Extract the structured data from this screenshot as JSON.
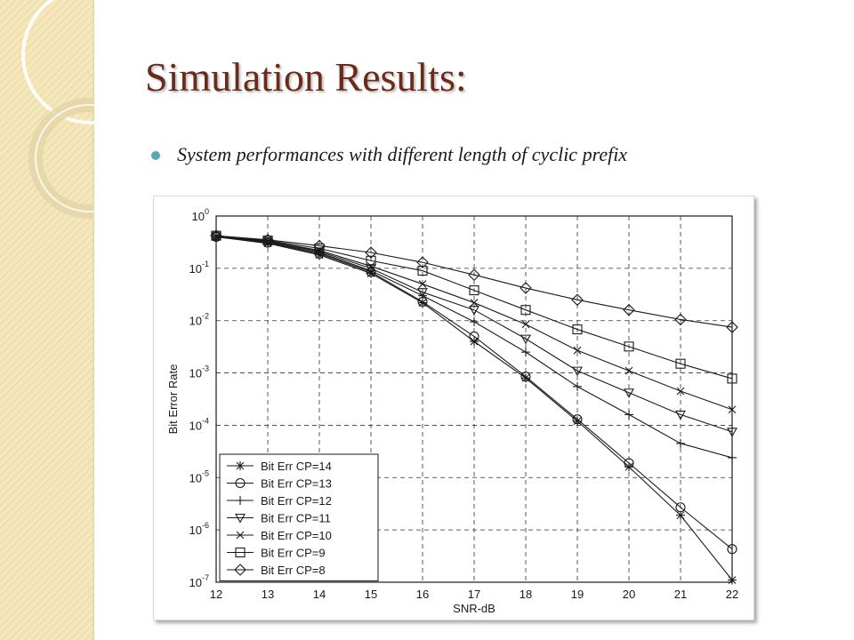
{
  "slide": {
    "title": "Simulation Results:",
    "bullet": "System performances with different length of cyclic prefix",
    "colors": {
      "side_panel": "#f3e4b4",
      "title": "#6b2a1a",
      "bullet": "#5aa7bd",
      "line": "#1a1a1a"
    }
  },
  "chart_data": {
    "type": "line",
    "xlabel": "SNR-dB",
    "ylabel": "Bit Error Rate",
    "xlim": [
      12,
      22
    ],
    "ylim": [
      1e-07,
      1
    ],
    "yscale": "log",
    "grid": true,
    "legend": "bottom-left",
    "x_ticks": [
      "12",
      "13",
      "14",
      "15",
      "16",
      "17",
      "18",
      "19",
      "20",
      "21",
      "22"
    ],
    "y_ticks": [
      {
        "base": "10",
        "exp": "0"
      },
      {
        "base": "10",
        "exp": "-1"
      },
      {
        "base": "10",
        "exp": "-2"
      },
      {
        "base": "10",
        "exp": "-3"
      },
      {
        "base": "10",
        "exp": "-4"
      },
      {
        "base": "10",
        "exp": "-5"
      },
      {
        "base": "10",
        "exp": "-6"
      },
      {
        "base": "10",
        "exp": "-7"
      }
    ],
    "x": [
      12,
      13,
      14,
      15,
      16,
      17,
      18,
      19,
      20,
      21,
      22
    ],
    "series": [
      {
        "name": "Bit Err CP=14",
        "marker": "star",
        "values": [
          0.4,
          0.3,
          0.18,
          0.08,
          0.022,
          0.004,
          0.0008,
          0.00012,
          1.6e-05,
          1.9e-06,
          1.1e-07
        ]
      },
      {
        "name": "Bit Err CP=13",
        "marker": "circle",
        "values": [
          0.4,
          0.31,
          0.19,
          0.085,
          0.023,
          0.005,
          0.00085,
          0.00013,
          1.9e-05,
          2.7e-06,
          4.3e-07
        ]
      },
      {
        "name": "Bit Err CP=12",
        "marker": "plus",
        "values": [
          0.4,
          0.32,
          0.2,
          0.09,
          0.03,
          0.0095,
          0.0025,
          0.00055,
          0.00016,
          4.5e-05,
          2.4e-05
        ]
      },
      {
        "name": "Bit Err CP=11",
        "marker": "triangle",
        "values": [
          0.41,
          0.33,
          0.21,
          0.1,
          0.035,
          0.016,
          0.0045,
          0.0011,
          0.00042,
          0.00016,
          7.5e-05
        ]
      },
      {
        "name": "Bit Err CP=10",
        "marker": "x",
        "values": [
          0.41,
          0.33,
          0.22,
          0.11,
          0.05,
          0.022,
          0.0085,
          0.0027,
          0.0011,
          0.00045,
          0.0002
        ]
      },
      {
        "name": "Bit Err CP=9",
        "marker": "square",
        "values": [
          0.42,
          0.34,
          0.24,
          0.14,
          0.09,
          0.038,
          0.016,
          0.0068,
          0.0032,
          0.0015,
          0.00078
        ]
      },
      {
        "name": "Bit Err CP=8",
        "marker": "diamond",
        "values": [
          0.42,
          0.35,
          0.27,
          0.2,
          0.13,
          0.075,
          0.042,
          0.025,
          0.016,
          0.0105,
          0.0075
        ]
      }
    ]
  }
}
